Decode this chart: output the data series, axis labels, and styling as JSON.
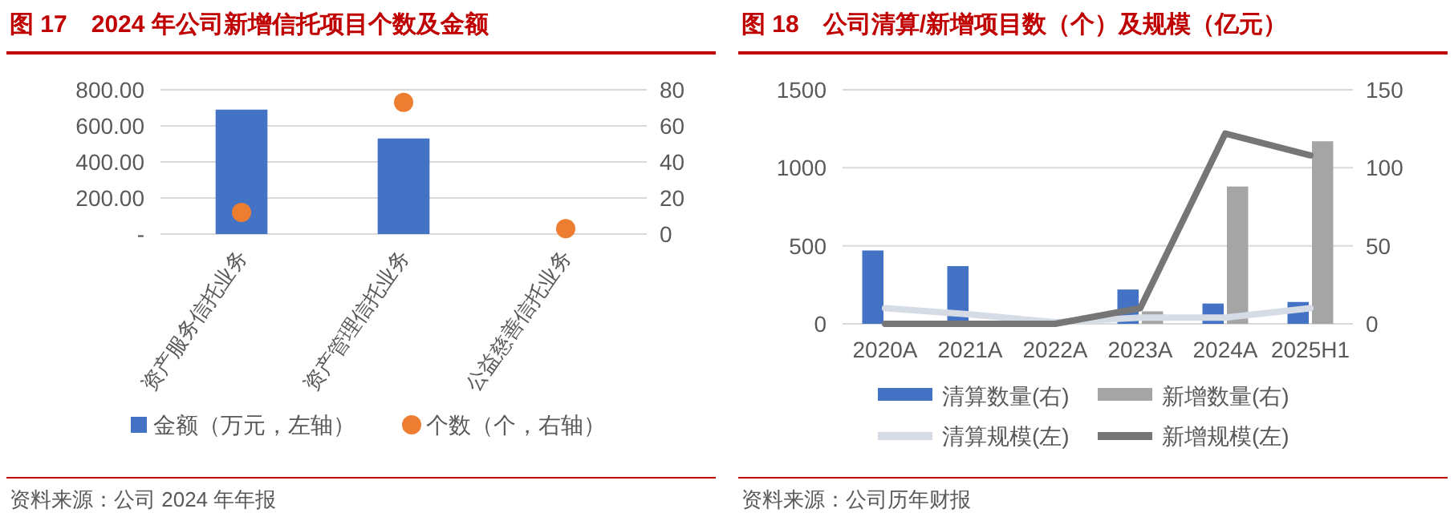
{
  "chart_data": [
    {
      "type": "bar",
      "title": "图 17　2024 年公司新增信托项目个数及金额",
      "categories": [
        "资产服务信托业务",
        "资产管理信托业务",
        "公益慈善信托业务"
      ],
      "series": [
        {
          "name": "金额（万元，左轴）",
          "color": "#4472c4",
          "values": [
            690,
            530,
            null
          ]
        },
        {
          "name": "个数（个，右轴）",
          "type": "scatter",
          "axis": "y2",
          "color": "#ed7d31",
          "values": [
            12,
            73,
            3
          ]
        }
      ],
      "ylim": [
        0,
        800
      ],
      "yticks": [
        {
          "value": 0,
          "label": "-"
        },
        {
          "value": 200,
          "label": "200.00"
        },
        {
          "value": 400,
          "label": "400.00"
        },
        {
          "value": 600,
          "label": "600.00"
        },
        {
          "value": 800,
          "label": "800.00"
        }
      ],
      "y2lim": [
        0,
        80
      ],
      "y2ticks": [
        0,
        20,
        40,
        60,
        80
      ],
      "grid": "y",
      "legend": "bottom",
      "marker": "circle",
      "annotations": [
        "资料来源：公司 2024 年年报"
      ]
    },
    {
      "type": "bar",
      "title": "图 18　公司清算/新增项目数（个）及规模（亿元）",
      "categories": [
        "2020A",
        "2021A",
        "2022A",
        "2023A",
        "2024A",
        "2025H1"
      ],
      "series": [
        {
          "name": "清算数量(右)",
          "axis": "y2",
          "color": "#4472c4",
          "values": [
            47,
            37,
            null,
            22,
            13,
            14
          ]
        },
        {
          "name": "新增数量(右)",
          "axis": "y2",
          "color": "#a5a5a5",
          "values": [
            null,
            null,
            null,
            8,
            88,
            117
          ]
        },
        {
          "name": "清算规模(左)",
          "type": "line",
          "color": "#d6dce5",
          "values": [
            100,
            60,
            10,
            40,
            40,
            100
          ]
        },
        {
          "name": "新增规模(左)",
          "type": "line",
          "color": "#767676",
          "values": [
            0,
            0,
            0,
            100,
            1220,
            1080
          ]
        }
      ],
      "ylim": [
        0,
        1500
      ],
      "yticks": [
        0,
        500,
        1000,
        1500
      ],
      "y2lim": [
        0,
        150
      ],
      "y2ticks": [
        0,
        50,
        100,
        150
      ],
      "grid": "y",
      "legend": "bottom",
      "annotations": [
        "资料来源：公司历年财报"
      ]
    }
  ]
}
